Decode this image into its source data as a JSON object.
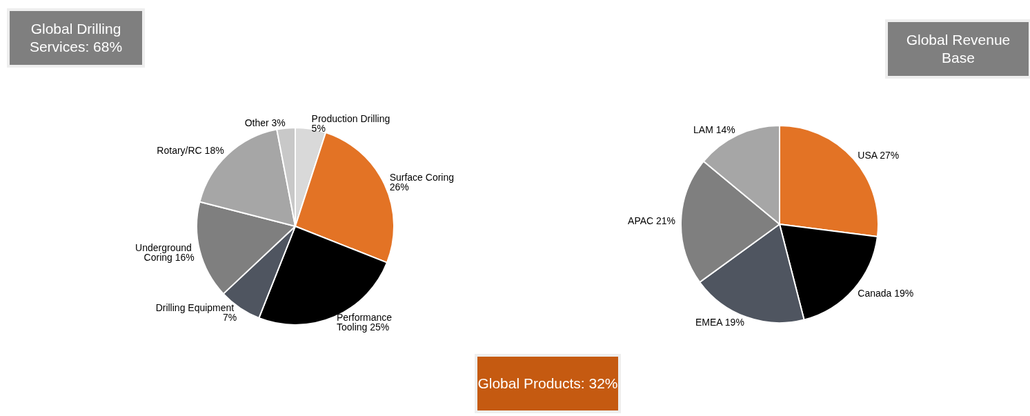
{
  "chart_data": [
    {
      "type": "pie",
      "annotations": [
        "Global Drilling Services: 68%",
        "Global Products: 32%"
      ],
      "categories": [
        "Production Drilling",
        "Surface Coring",
        "Performance Tooling",
        "Drilling Equipment",
        "Underground Coring",
        "Rotary/RC",
        "Other"
      ],
      "values": [
        5,
        26,
        25,
        7,
        16,
        18,
        3
      ],
      "colors": [
        "#d9d9d9",
        "#e37325",
        "#000000",
        "#4f5560",
        "#7f7f7f",
        "#a6a6a6",
        "#c8c8c8"
      ],
      "value_labels": [
        "5%",
        "26%",
        "25%",
        "7%",
        "16%",
        "18%",
        "3%"
      ],
      "legend": false
    },
    {
      "type": "pie",
      "title": "Global Revenue Base",
      "categories": [
        "USA",
        "Canada",
        "EMEA",
        "APAC",
        "LAM"
      ],
      "values": [
        27,
        19,
        19,
        21,
        14
      ],
      "colors": [
        "#e37325",
        "#000000",
        "#4f5560",
        "#7f7f7f",
        "#a6a6a6"
      ],
      "value_labels": [
        "27%",
        "19%",
        "19%",
        "21%",
        "14%"
      ],
      "legend": false
    }
  ]
}
